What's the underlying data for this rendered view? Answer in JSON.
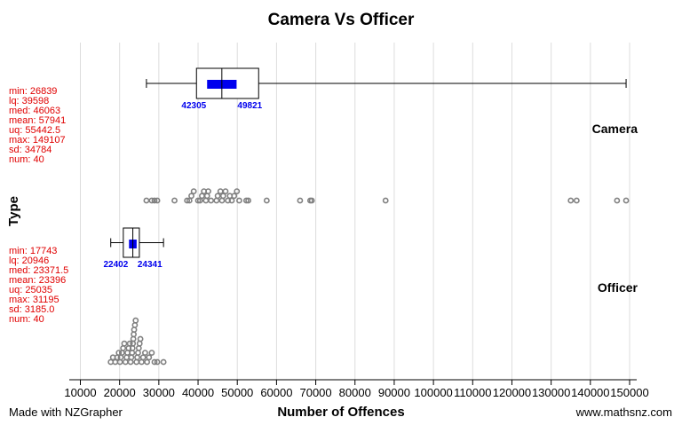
{
  "chart_data": {
    "type": "dot-box-plot",
    "title": "Camera Vs Officer",
    "xlabel": "Number of Offences",
    "ylabel": "Type",
    "xlim": [
      7000,
      152000
    ],
    "x_ticks": [
      10000,
      20000,
      30000,
      40000,
      50000,
      60000,
      70000,
      80000,
      90000,
      100000,
      110000,
      120000,
      130000,
      140000,
      150000
    ],
    "x_tick_labels": [
      "10000",
      "20000",
      "30000",
      "40000",
      "50000",
      "60000",
      "70000",
      "80000",
      "90000",
      "100000",
      "110000",
      "120000",
      "130000",
      "140000",
      "150000"
    ],
    "grid": true,
    "groups": [
      {
        "name": "Camera",
        "stats": {
          "min": 26839,
          "lq": 39598,
          "med": 46063,
          "mean": 57941,
          "uq": 55442.5,
          "max": 149107,
          "sd": 34784,
          "num": 40
        },
        "stat_lines": [
          "min: 26839",
          "lq: 39598",
          "med: 46063",
          "mean: 57941",
          "uq: 55442.5",
          "max: 149107",
          "sd: 34784",
          "num: 40"
        ],
        "ci": [
          42305,
          49821
        ],
        "ci_labels": [
          "42305",
          "49821"
        ],
        "points": [
          26839,
          28200,
          28900,
          29600,
          34000,
          37200,
          37800,
          38300,
          38900,
          40000,
          40500,
          41000,
          41500,
          42000,
          42300,
          42600,
          43300,
          44700,
          45000,
          45700,
          46100,
          46400,
          47000,
          47600,
          48100,
          48600,
          49200,
          49900,
          50500,
          52300,
          52800,
          57500,
          66000,
          68600,
          69000,
          87800,
          135000,
          136500,
          146800,
          149107
        ]
      },
      {
        "name": "Officer",
        "stats": {
          "min": 17743,
          "lq": 20946,
          "med": 23371.5,
          "mean": 23396,
          "uq": 25035,
          "max": 31195,
          "sd": 3185.0,
          "num": 40
        },
        "stat_lines": [
          "min: 17743",
          "lq: 20946",
          "med: 23371.5",
          "mean: 23396",
          "uq: 25035",
          "max: 31195",
          "sd: 3185.0",
          "num: 40"
        ],
        "ci": [
          22402,
          24341
        ],
        "ci_labels": [
          "22402",
          "24341"
        ],
        "points": [
          17743,
          18300,
          18900,
          19400,
          19800,
          20100,
          20300,
          20600,
          20900,
          21200,
          21500,
          21800,
          22000,
          22300,
          22600,
          22800,
          23000,
          23200,
          23300,
          23400,
          23500,
          23600,
          23700,
          23900,
          24100,
          24300,
          24500,
          24700,
          24900,
          25100,
          25300,
          25600,
          26000,
          26500,
          27000,
          27500,
          28200,
          28900,
          29600,
          31195
        ]
      }
    ]
  },
  "footer": {
    "left": "Made with NZGrapher",
    "right": "www.mathsnz.com"
  }
}
